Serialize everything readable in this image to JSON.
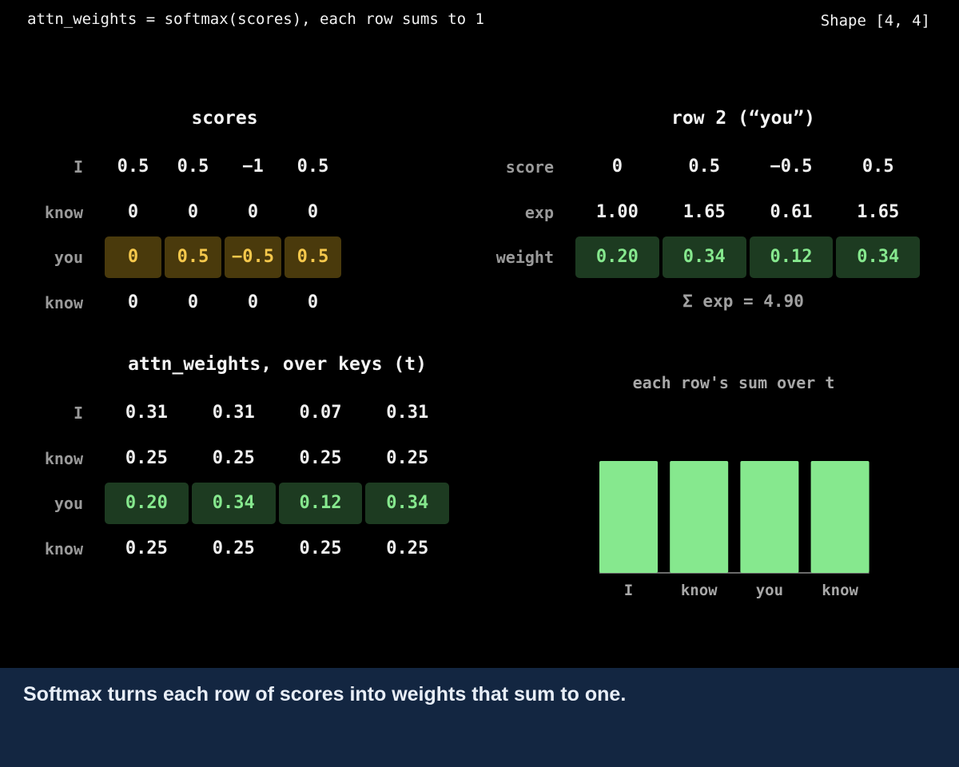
{
  "header": {
    "formula": "attn_weights = softmax(scores), each row sums to 1",
    "shape": "Shape [4, 4]"
  },
  "scores": {
    "title": "scores",
    "rows": [
      {
        "label": "I",
        "values": [
          "0.5",
          "0.5",
          "−1",
          "0.5"
        ]
      },
      {
        "label": "know",
        "values": [
          "0",
          "0",
          "0",
          "0"
        ]
      },
      {
        "label": "you",
        "values": [
          "0",
          "0.5",
          "−0.5",
          "0.5"
        ]
      },
      {
        "label": "know",
        "values": [
          "0",
          "0",
          "0",
          "0"
        ]
      }
    ],
    "highlight_row": 2,
    "highlight_color": "#4a3a0c",
    "highlight_text_color": "#f5c84c"
  },
  "row_detail": {
    "title": "row 2 (“you”)",
    "rows": [
      {
        "label": "score",
        "values": [
          "0",
          "0.5",
          "−0.5",
          "0.5"
        ]
      },
      {
        "label": "exp",
        "values": [
          "1.00",
          "1.65",
          "0.61",
          "1.65"
        ]
      },
      {
        "label": "weight",
        "values": [
          "0.20",
          "0.34",
          "0.12",
          "0.34"
        ]
      }
    ],
    "sum_label": "Σ exp = 4.90",
    "weight_color": "#1d3b21",
    "weight_text_color": "#86e88e"
  },
  "attn_weights": {
    "title": "attn_weights, over keys (t)",
    "rows": [
      {
        "label": "I",
        "values": [
          "0.31",
          "0.31",
          "0.07",
          "0.31"
        ]
      },
      {
        "label": "know",
        "values": [
          "0.25",
          "0.25",
          "0.25",
          "0.25"
        ]
      },
      {
        "label": "you",
        "values": [
          "0.20",
          "0.34",
          "0.12",
          "0.34"
        ]
      },
      {
        "label": "know",
        "values": [
          "0.25",
          "0.25",
          "0.25",
          "0.25"
        ]
      }
    ],
    "highlight_row": 2
  },
  "chart_data": {
    "type": "bar",
    "title": "each row's sum over t",
    "categories": [
      "I",
      "know",
      "you",
      "know"
    ],
    "values": [
      1,
      1,
      1,
      1
    ],
    "ylim": [
      0,
      1
    ],
    "bar_color": "#86e88e",
    "xlabel": "",
    "ylabel": ""
  },
  "caption": "Softmax turns each row of scores into weights that sum to one."
}
